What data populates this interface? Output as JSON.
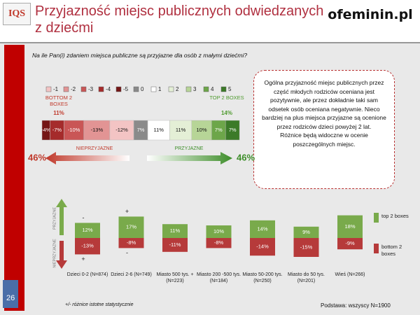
{
  "header": {
    "logo": "IQS",
    "title": "Przyjazność miejsc publicznych odwiedzanych z dziećmi",
    "brand": "ofeminin.pl"
  },
  "question": "Na ile Pan(i) zdaniem miejsca publiczne są przyjazne dla osób z małymi dziećmi?",
  "note": "Ogólna przyjazność miejsc publicznych przez część młodych rodziców oceniana jest pozytywnie, ale przez dokładnie taki sam odsetek osób oceniana negatywnie. Nieco bardziej na plus miejsca przyjazne są ocenione przez rodziców dzieci powyżej 2 lat.\nRóżnice będą widoczne w ocenie poszczególnych miejsc.",
  "footnote": "+/- różnice istotne statystycznie",
  "base": "Podstawa: wszyscy N=1900",
  "page_number": "26",
  "chart_data": [
    {
      "type": "stackedbar",
      "series": [
        {
          "name": "-1",
          "color": "#f3c4c4",
          "values": [
            -12
          ],
          "value_labels": [
            "-12%"
          ]
        },
        {
          "name": "-2",
          "color": "#e29494",
          "values": [
            -13
          ],
          "value_labels": [
            "-13%"
          ]
        },
        {
          "name": "-3",
          "color": "#c95656",
          "values": [
            -10
          ],
          "value_labels": [
            "-10%"
          ]
        },
        {
          "name": "-4",
          "color": "#a52b2b",
          "values": [
            -7
          ],
          "value_labels": [
            "-7%"
          ]
        },
        {
          "name": "-5",
          "color": "#741616",
          "values": [
            -4
          ],
          "value_labels": [
            "-4%"
          ]
        },
        {
          "name": "0",
          "color": "#8a8a8a",
          "values": [
            7
          ],
          "value_labels": [
            "7%"
          ]
        },
        {
          "name": "1",
          "color": "#ffffff",
          "values": [
            11
          ],
          "value_labels": [
            "11%"
          ]
        },
        {
          "name": "2",
          "color": "#e4efd6",
          "values": [
            11
          ],
          "value_labels": [
            "11%"
          ]
        },
        {
          "name": "3",
          "color": "#b7d597",
          "values": [
            10
          ],
          "value_labels": [
            "10%"
          ]
        },
        {
          "name": "4",
          "color": "#6da649",
          "values": [
            7
          ],
          "value_labels": [
            "7%"
          ]
        },
        {
          "name": "5",
          "color": "#3c7a28",
          "values": [
            7
          ],
          "value_labels": [
            "7%"
          ]
        }
      ],
      "bottom2": {
        "label": "BOTTOM 2 BOXES",
        "value": 11,
        "value_label": "11%",
        "color": "#c0392b"
      },
      "top2": {
        "label": "TOP 2 BOXES",
        "value": 14,
        "value_label": "14%",
        "color": "#4e9a2e"
      },
      "arrows": [
        {
          "label": "NIEPRZYJAZNE",
          "value": 46,
          "value_label": "46%",
          "color": "#c0392b"
        },
        {
          "label": "PRZYJAZNE",
          "value": 46,
          "value_label": "46%",
          "color": "#3e8e2a"
        }
      ]
    },
    {
      "type": "bar",
      "categories": [
        "Dzieci 0-2 (N=874)",
        "Dzieci 2-6 (N=749)",
        "Miasto 500 tys. + (N=223)",
        "Miasto 200 -500 tys. (N=184)",
        "Miasto 50-200 tys. (N=250)",
        "Miasto do 50 tys. (N=201)",
        "Wieś (N=266)"
      ],
      "series": [
        {
          "name": "top 2 boxes",
          "color": "#79aa4b",
          "values": [
            12,
            17,
            11,
            10,
            14,
            9,
            18
          ],
          "value_labels": [
            "12%",
            "17%",
            "11%",
            "10%",
            "14%",
            "9%",
            "18%"
          ]
        },
        {
          "name": "bottom 2 boxes",
          "color": "#b63a3a",
          "values": [
            -13,
            -8,
            -11,
            -8,
            -14,
            -15,
            -9
          ],
          "value_labels": [
            "-13%",
            "-8%",
            "-11%",
            "-8%",
            "-14%",
            "-15%",
            "-9%"
          ]
        }
      ],
      "significance": [
        [
          "-",
          "+",
          null,
          null,
          null,
          null,
          null
        ],
        [
          "+",
          "-",
          null,
          null,
          null,
          null,
          null
        ]
      ],
      "axis_labels": {
        "top": "PRZYJAZNE",
        "bottom": "NIEPRZYJAZNE"
      }
    }
  ]
}
